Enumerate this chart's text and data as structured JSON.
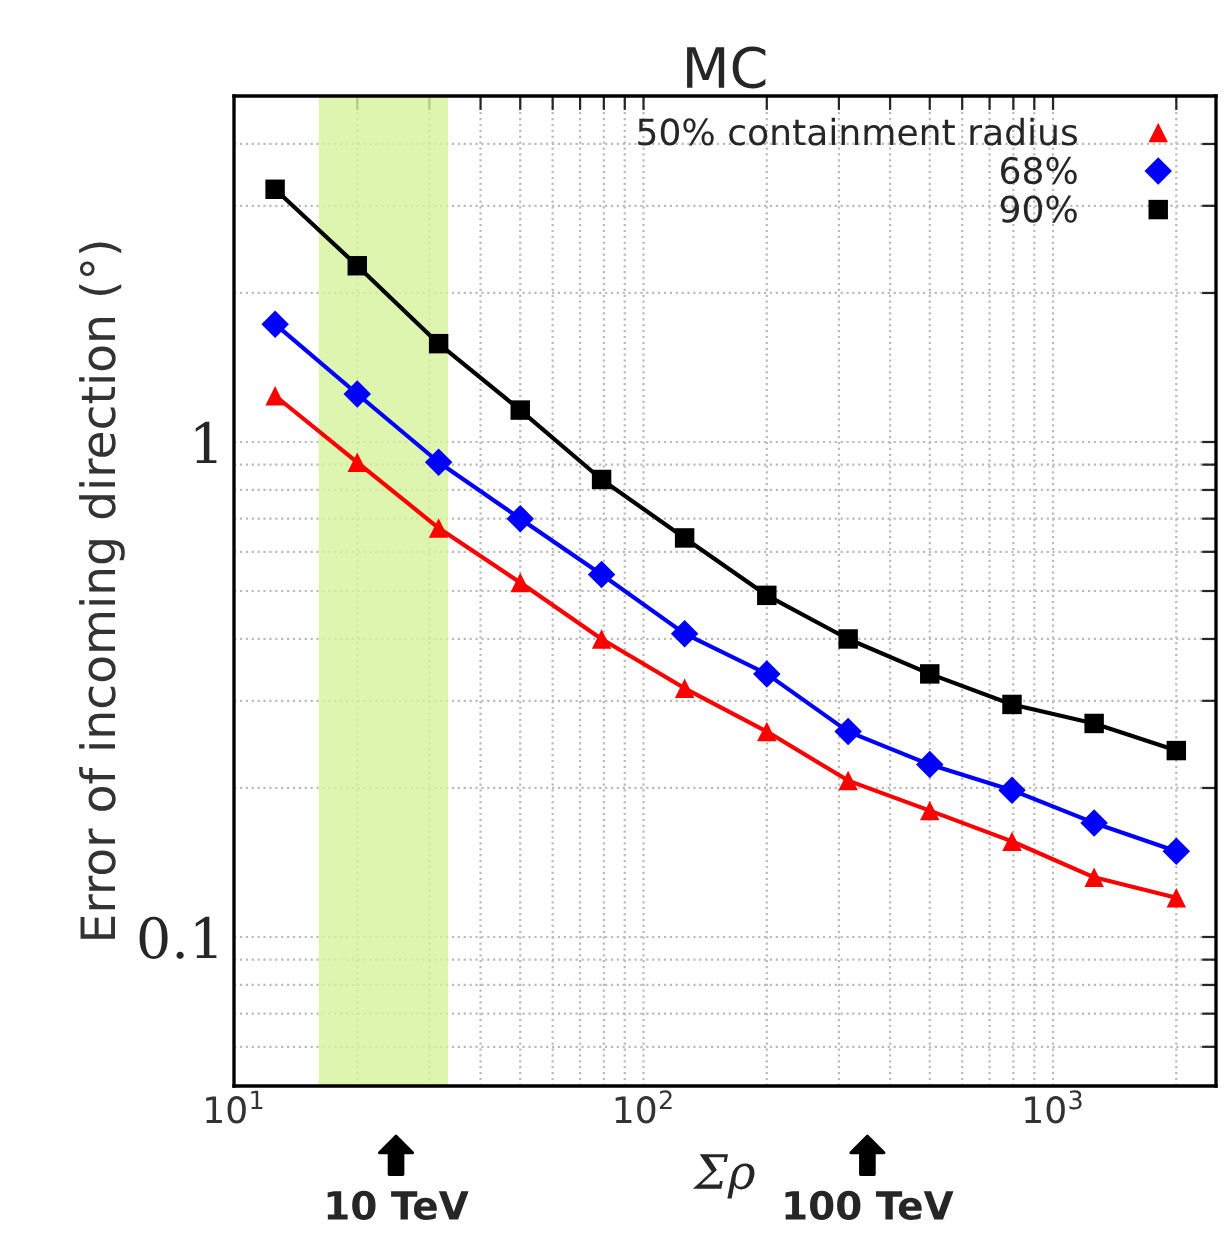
{
  "chart_data": {
    "type": "line",
    "title": "MC",
    "xlabel": "Σρ",
    "ylabel": "Error of incoming direction (°)",
    "log": "xy",
    "grid": true,
    "legend": "top right",
    "xlim": [
      10,
      2500
    ],
    "ylim": [
      0.05,
      5
    ],
    "xticks": [
      {
        "value": 10,
        "label": "10$^{1}$"
      },
      {
        "value": 20,
        "label": null
      },
      {
        "value": 30,
        "label": null
      },
      {
        "value": 40,
        "label": null
      },
      {
        "value": 50,
        "label": null
      },
      {
        "value": 60,
        "label": null
      },
      {
        "value": 70,
        "label": null
      },
      {
        "value": 80,
        "label": null
      },
      {
        "value": 90,
        "label": null
      },
      {
        "value": 100,
        "label": "10$^{2}$"
      },
      {
        "value": 200,
        "label": null
      },
      {
        "value": 300,
        "label": null
      },
      {
        "value": 400,
        "label": null
      },
      {
        "value": 500,
        "label": null
      },
      {
        "value": 600,
        "label": null
      },
      {
        "value": 700,
        "label": null
      },
      {
        "value": 800,
        "label": null
      },
      {
        "value": 900,
        "label": null
      },
      {
        "value": 1000,
        "label": "10$^{3}$"
      },
      {
        "value": 2000,
        "label": null
      }
    ],
    "yticks": [
      {
        "value": 0.06,
        "label": null
      },
      {
        "value": 0.07,
        "label": null
      },
      {
        "value": 0.08,
        "label": null
      },
      {
        "value": 0.09,
        "label": null
      },
      0.1,
      {
        "value": 0.2,
        "label": null
      },
      {
        "value": 0.3,
        "label": null
      },
      {
        "value": 0.4,
        "label": null
      },
      {
        "value": 0.5,
        "label": null
      },
      {
        "value": 0.6,
        "label": null
      },
      {
        "value": 0.7,
        "label": null
      },
      {
        "value": 0.8,
        "label": null
      },
      {
        "value": 0.9,
        "label": null
      },
      1,
      {
        "value": 2,
        "label": null
      },
      {
        "value": 3,
        "label": null
      },
      {
        "value": 4,
        "label": null
      }
    ],
    "x": [
      12.6,
      20,
      31.6,
      50,
      79,
      126,
      200,
      316,
      500,
      794,
      1260,
      2000
    ],
    "series": [
      {
        "name": "50% containment radius",
        "color": "#ff0000",
        "marker": "triangle",
        "values": [
          1.24,
          0.91,
          0.67,
          0.52,
          0.4,
          0.318,
          0.26,
          0.207,
          0.18,
          0.156,
          0.132,
          0.12
        ]
      },
      {
        "name": "68%",
        "color": "#0000ff",
        "marker": "diamond",
        "values": [
          1.73,
          1.25,
          0.91,
          0.7,
          0.54,
          0.41,
          0.34,
          0.26,
          0.223,
          0.198,
          0.17,
          0.149
        ]
      },
      {
        "name": "90%",
        "color": "#000000",
        "marker": "square",
        "values": [
          3.24,
          2.27,
          1.58,
          1.16,
          0.84,
          0.64,
          0.49,
          0.4,
          0.34,
          0.295,
          0.27,
          0.238
        ]
      }
    ],
    "bands": [
      {
        "axis": "x",
        "from": 16.1,
        "to": 33.3,
        "color": "#d4f29a"
      }
    ],
    "annotations": [
      "10 TeV",
      "100 TeV"
    ]
  }
}
